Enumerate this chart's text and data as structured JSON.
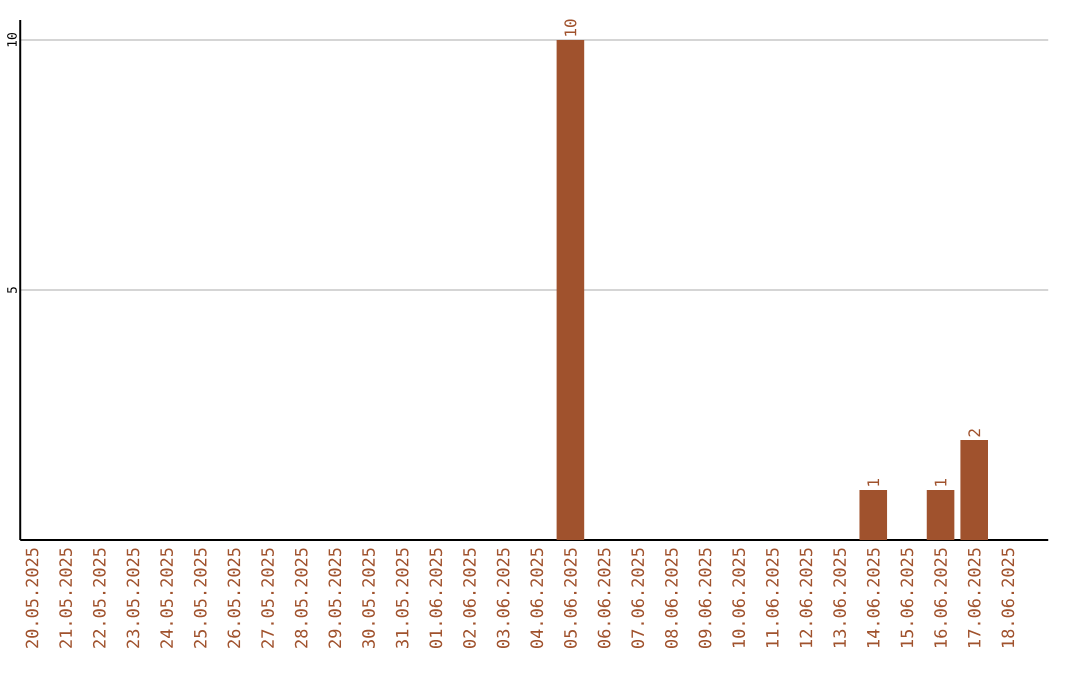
{
  "chart_data": {
    "type": "bar",
    "categories": [
      "20.05.2025",
      "21.05.2025",
      "22.05.2025",
      "23.05.2025",
      "24.05.2025",
      "25.05.2025",
      "26.05.2025",
      "27.05.2025",
      "28.05.2025",
      "29.05.2025",
      "30.05.2025",
      "31.05.2025",
      "01.06.2025",
      "02.06.2025",
      "03.06.2025",
      "04.06.2025",
      "05.06.2025",
      "06.06.2025",
      "07.06.2025",
      "08.06.2025",
      "09.06.2025",
      "10.06.2025",
      "11.06.2025",
      "12.06.2025",
      "13.06.2025",
      "14.06.2025",
      "15.06.2025",
      "16.06.2025",
      "17.06.2025",
      "18.06.2025"
    ],
    "values": [
      0,
      0,
      0,
      0,
      0,
      0,
      0,
      0,
      0,
      0,
      0,
      0,
      0,
      0,
      0,
      0,
      10,
      0,
      0,
      0,
      0,
      0,
      0,
      0,
      0,
      1,
      0,
      1,
      2,
      0
    ],
    "value_labels": [
      null,
      null,
      null,
      null,
      null,
      null,
      null,
      null,
      null,
      null,
      null,
      null,
      null,
      null,
      null,
      null,
      "10",
      null,
      null,
      null,
      null,
      null,
      null,
      null,
      null,
      "1",
      null,
      "1",
      "2",
      null
    ],
    "color": "#a0522d",
    "ylim": [
      0,
      10.4
    ],
    "yticks": [
      5,
      10
    ],
    "grid": "y"
  }
}
